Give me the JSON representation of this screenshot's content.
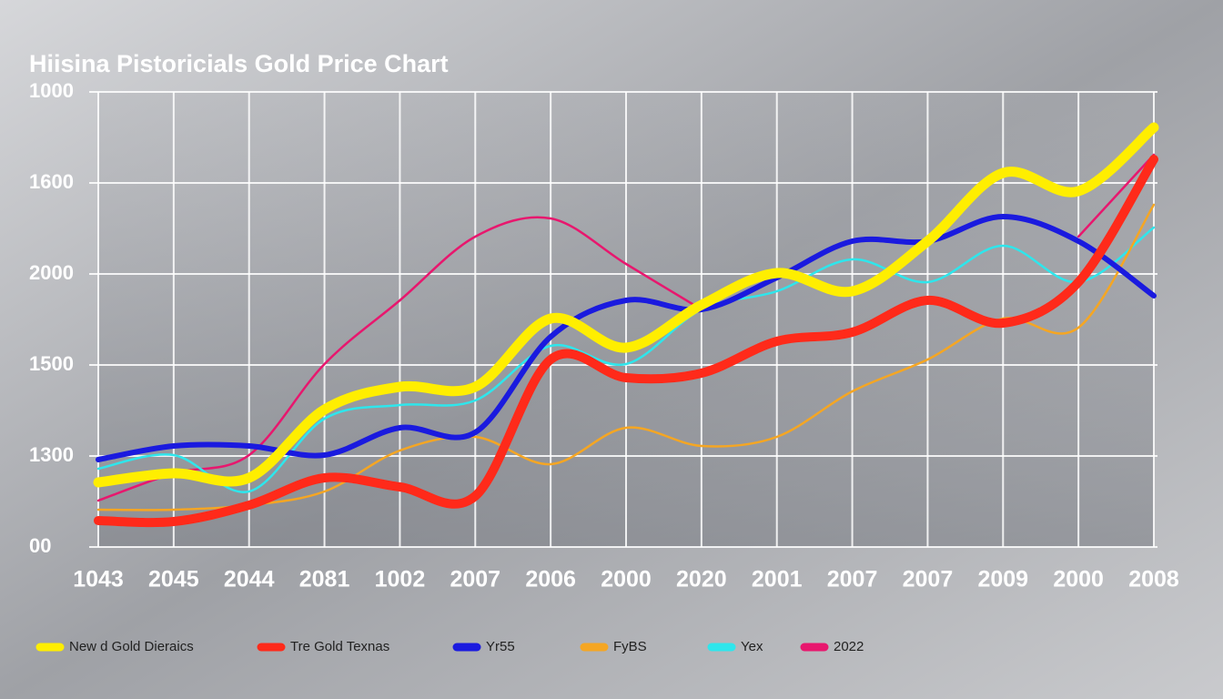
{
  "chart_data": {
    "type": "line",
    "title": "Hiisina Pistoricials Gold Price Chart",
    "categories": [
      "1043",
      "2045",
      "2044",
      "2081",
      "1002",
      "2007",
      "2006",
      "2000",
      "2020",
      "2001",
      "2007",
      "2007",
      "2009",
      "2000",
      "2008"
    ],
    "ylim": [
      0,
      5
    ],
    "yticks": [
      {
        "value": 0,
        "label": "00"
      },
      {
        "value": 1,
        "label": "1300"
      },
      {
        "value": 2,
        "label": "1500"
      },
      {
        "value": 3,
        "label": "2000"
      },
      {
        "value": 4,
        "label": "1600"
      },
      {
        "value": 5,
        "label": "1000"
      }
    ],
    "grid": true,
    "series": [
      {
        "name": "New d Gold Dieraics",
        "color": "#ffee00",
        "values": [
          0.71,
          0.81,
          0.76,
          1.51,
          1.76,
          1.76,
          2.51,
          2.19,
          2.66,
          3.01,
          2.81,
          3.36,
          4.11,
          3.91,
          4.61
        ]
      },
      {
        "name": "Tre Gold Texnas",
        "color": "#ff2a1a",
        "values": [
          0.29,
          0.28,
          0.46,
          0.76,
          0.66,
          0.56,
          2.06,
          1.86,
          1.91,
          2.26,
          2.36,
          2.71,
          2.46,
          2.91,
          4.26
        ]
      },
      {
        "name": "Yr55",
        "color": "#1a1adf",
        "values": [
          0.96,
          1.11,
          1.11,
          1.01,
          1.31,
          1.26,
          2.31,
          2.71,
          2.61,
          2.96,
          3.36,
          3.36,
          3.63,
          3.36,
          2.76
        ]
      },
      {
        "name": "FyBS",
        "color": "#f5a623",
        "values": [
          0.41,
          0.41,
          0.46,
          0.61,
          1.06,
          1.21,
          0.91,
          1.31,
          1.11,
          1.21,
          1.71,
          2.06,
          2.51,
          2.41,
          3.76
        ]
      },
      {
        "name": "Yex",
        "color": "#2ee6ec",
        "values": [
          0.86,
          1.01,
          0.61,
          1.41,
          1.56,
          1.61,
          2.21,
          2.01,
          2.61,
          2.81,
          3.16,
          2.91,
          3.31,
          2.91,
          3.51
        ]
      },
      {
        "name": "2022",
        "color": "#e8176e",
        "values": [
          0.51,
          0.81,
          1.01,
          2.01,
          2.71,
          3.41,
          3.61,
          3.11,
          2.61,
          null,
          null,
          null,
          null,
          3.41,
          4.31
        ]
      }
    ]
  }
}
